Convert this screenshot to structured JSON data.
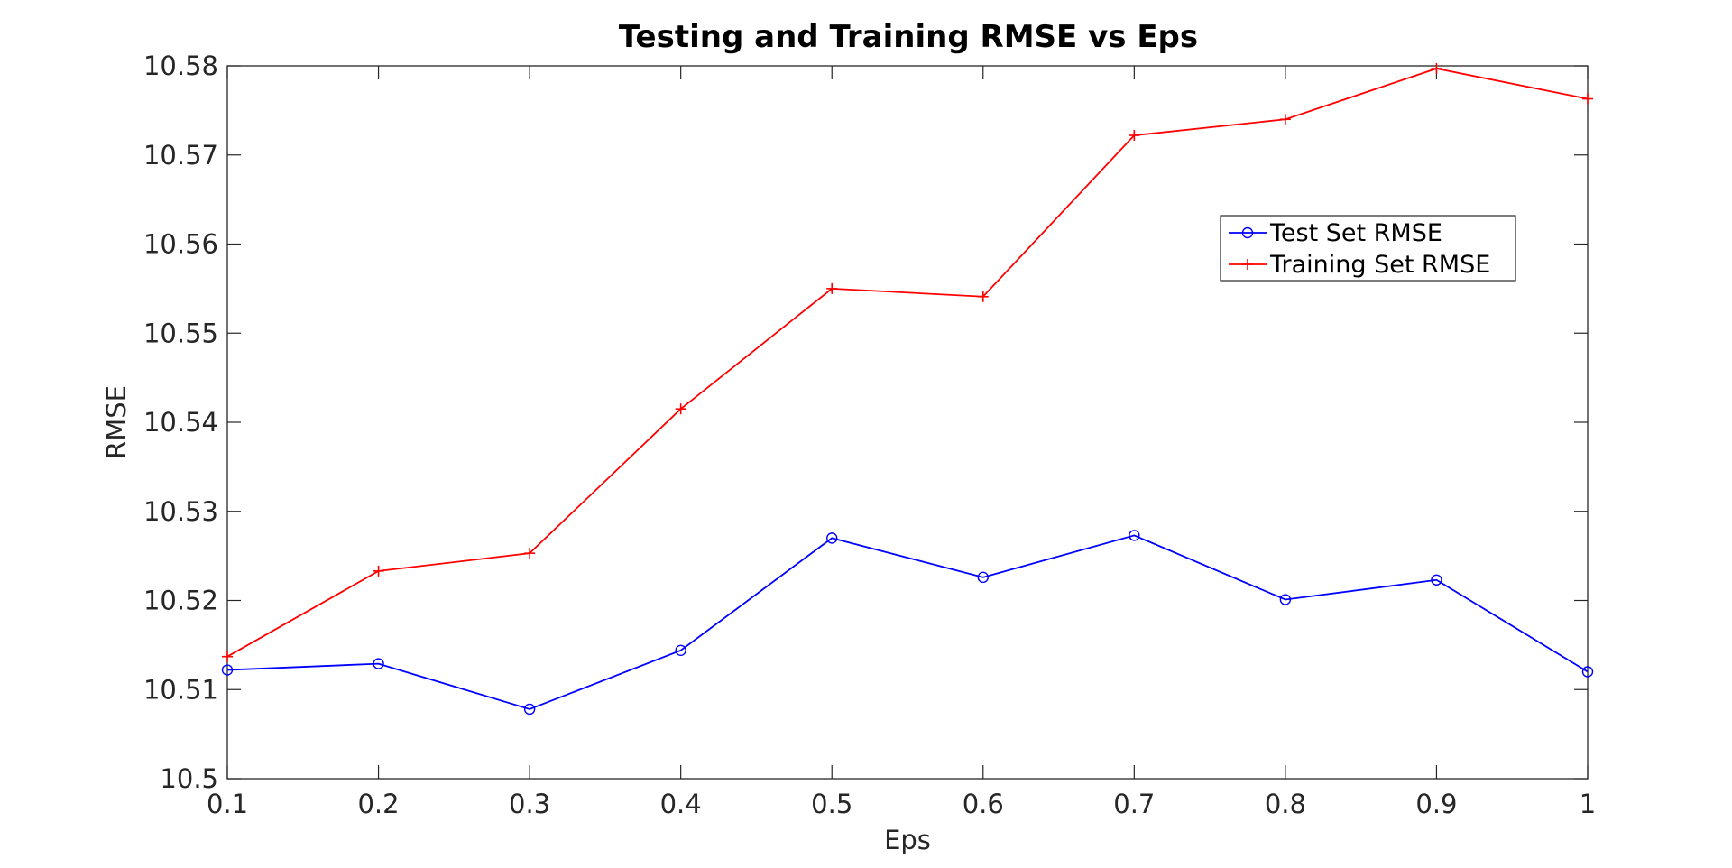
{
  "chart_data": {
    "type": "line",
    "title": "Testing and Training RMSE vs Eps",
    "xlabel": "Eps",
    "ylabel": "RMSE",
    "xlim": [
      0.1,
      1
    ],
    "ylim": [
      10.5,
      10.58
    ],
    "x": [
      0.1,
      0.2,
      0.3,
      0.4,
      0.5,
      0.6,
      0.7,
      0.8,
      0.9,
      1
    ],
    "x_tick_labels": [
      "0.1",
      "0.2",
      "0.3",
      "0.4",
      "0.5",
      "0.6",
      "0.7",
      "0.8",
      "0.9",
      "1"
    ],
    "y_ticks": [
      10.5,
      10.51,
      10.52,
      10.53,
      10.54,
      10.55,
      10.56,
      10.57,
      10.58
    ],
    "y_tick_labels": [
      "10.5",
      "10.51",
      "10.52",
      "10.53",
      "10.54",
      "10.55",
      "10.56",
      "10.57",
      "10.58"
    ],
    "grid": false,
    "legend_position": "top-right",
    "series": [
      {
        "name": "Test Set RMSE",
        "color": "#0000ff",
        "marker": "circle",
        "values": [
          10.5122,
          10.5129,
          10.5078,
          10.5144,
          10.527,
          10.5226,
          10.5273,
          10.5201,
          10.5223,
          10.512
        ]
      },
      {
        "name": "Training Set RMSE",
        "color": "#ff0000",
        "marker": "plus",
        "values": [
          10.5137,
          10.5233,
          10.5253,
          10.5415,
          10.555,
          10.5541,
          10.5722,
          10.574,
          10.5797,
          10.5763
        ]
      }
    ]
  }
}
